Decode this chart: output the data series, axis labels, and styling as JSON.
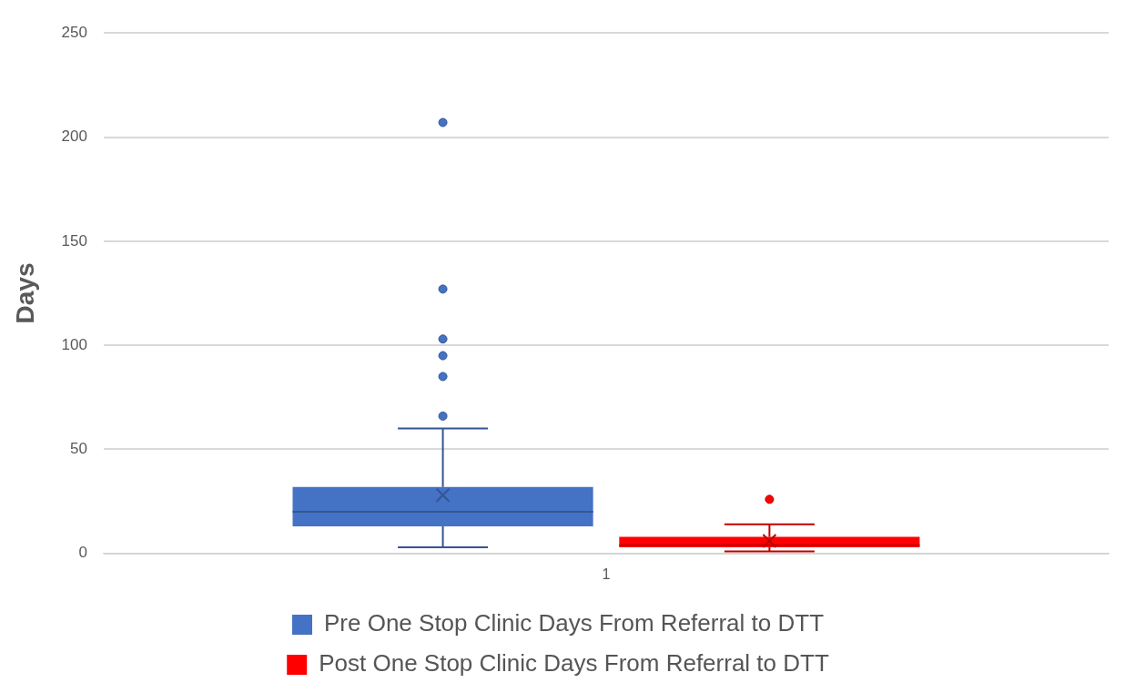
{
  "chart_data": {
    "type": "box",
    "ylabel": "Days",
    "categories": [
      "1"
    ],
    "ylim": [
      0,
      250
    ],
    "yticks": [
      0,
      50,
      100,
      150,
      200,
      250
    ],
    "grid": "y",
    "legend": "bottom",
    "series": [
      {
        "name": "Pre One Stop Clinic Days From Referral to DTT",
        "color": "#4472c4",
        "boxes": [
          {
            "low": 3,
            "q1": 13,
            "median": 20,
            "q3": 32,
            "high": 60,
            "mean": 28,
            "outliers": [
              66,
              85,
              95,
              103,
              127,
              207
            ]
          }
        ]
      },
      {
        "name": "Post One Stop Clinic Days From Referral to DTT",
        "color": "#ff0000",
        "boxes": [
          {
            "low": 1,
            "q1": 3,
            "median": 4,
            "q3": 8,
            "high": 14,
            "mean": 6,
            "outliers": [
              26
            ]
          }
        ]
      }
    ]
  }
}
